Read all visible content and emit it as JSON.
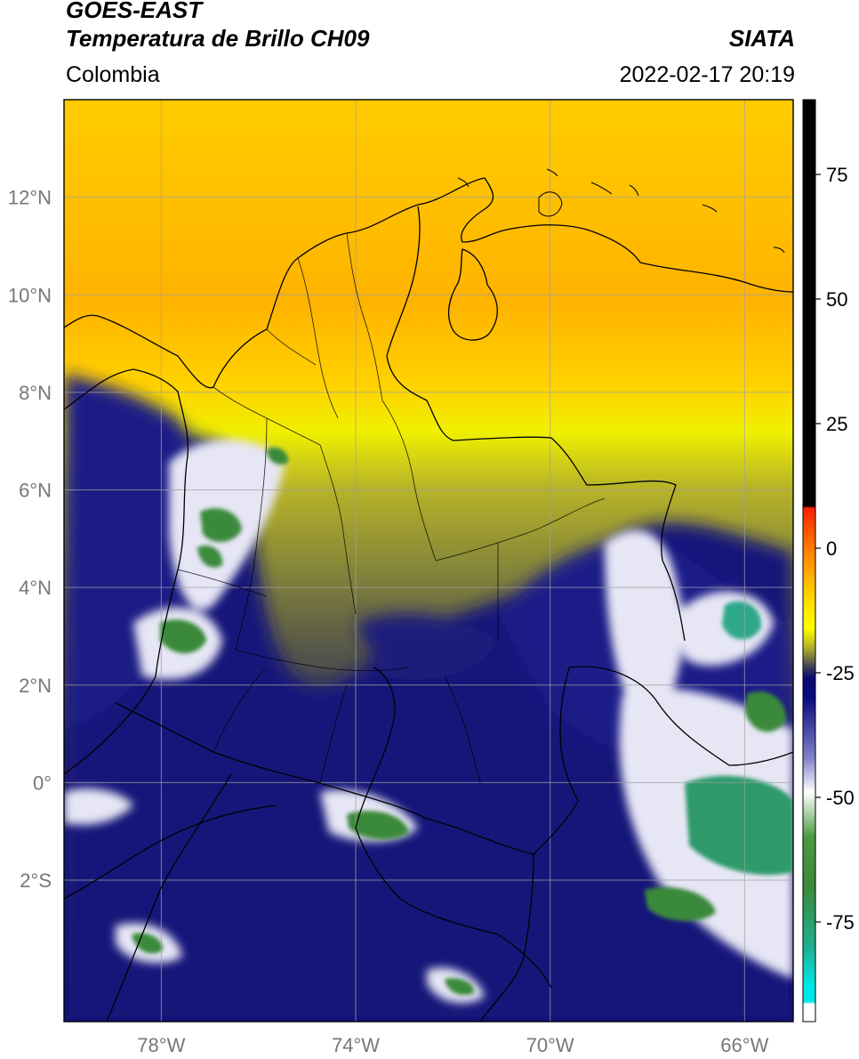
{
  "header": {
    "satellite": "GOES-EAST",
    "product": "Temperatura de Brillo CH09",
    "brand": "SIATA",
    "region": "Colombia",
    "datetime": "2022-02-17 20:19"
  },
  "map": {
    "lon_range": [
      -80,
      -65
    ],
    "lat_range": [
      -4.9,
      14
    ],
    "x_ticks": [
      {
        "value": -78,
        "label": "78°W"
      },
      {
        "value": -74,
        "label": "74°W"
      },
      {
        "value": -70,
        "label": "70°W"
      },
      {
        "value": -66,
        "label": "66°W"
      }
    ],
    "y_ticks": [
      {
        "value": 12,
        "label": "12°N"
      },
      {
        "value": 10,
        "label": "10°N"
      },
      {
        "value": 8,
        "label": "8°N"
      },
      {
        "value": 6,
        "label": "6°N"
      },
      {
        "value": 4,
        "label": "4°N"
      },
      {
        "value": 2,
        "label": "2°N"
      },
      {
        "value": 0,
        "label": "0°"
      },
      {
        "value": -2,
        "label": "2°S"
      }
    ],
    "grid": true,
    "colors": {
      "warm": "#ffc000",
      "mid": "#e8e800",
      "olive": "#6e6e3a",
      "cold": "#0e0e78",
      "white": "#ffffff",
      "green": "#3a8a3a",
      "teal": "#22b28a",
      "border": "#000000",
      "grid": "#a0a0a0",
      "tick_label": "#777777"
    }
  },
  "colorbar": {
    "range": [
      -95,
      90
    ],
    "ticks": [
      {
        "value": 75,
        "label": "75"
      },
      {
        "value": 50,
        "label": "50"
      },
      {
        "value": 25,
        "label": "25"
      },
      {
        "value": 0,
        "label": "0"
      },
      {
        "value": -25,
        "label": "-25"
      },
      {
        "value": -50,
        "label": "-50"
      },
      {
        "value": -75,
        "label": "-75"
      }
    ],
    "stops": [
      {
        "value": 90,
        "color": "#000000"
      },
      {
        "value": 8.5,
        "color": "#000000"
      },
      {
        "value": 8,
        "color": "#ff2000"
      },
      {
        "value": 0,
        "color": "#ff7a00"
      },
      {
        "value": -10,
        "color": "#ffd800"
      },
      {
        "value": -16,
        "color": "#ffff00"
      },
      {
        "value": -20,
        "color": "#b0b02a"
      },
      {
        "value": -24,
        "color": "#3c3c5a"
      },
      {
        "value": -26,
        "color": "#0a0a70"
      },
      {
        "value": -30,
        "color": "#0a0a80"
      },
      {
        "value": -42,
        "color": "#8080c8"
      },
      {
        "value": -49,
        "color": "#ffffff"
      },
      {
        "value": -58,
        "color": "#4a9a40"
      },
      {
        "value": -68,
        "color": "#3a8a3a"
      },
      {
        "value": -80,
        "color": "#20b090"
      },
      {
        "value": -88,
        "color": "#00e8e8"
      },
      {
        "value": -91,
        "color": "#00e8e8"
      },
      {
        "value": -91.5,
        "color": "#ffffff"
      },
      {
        "value": -95,
        "color": "#ffffff"
      }
    ]
  }
}
